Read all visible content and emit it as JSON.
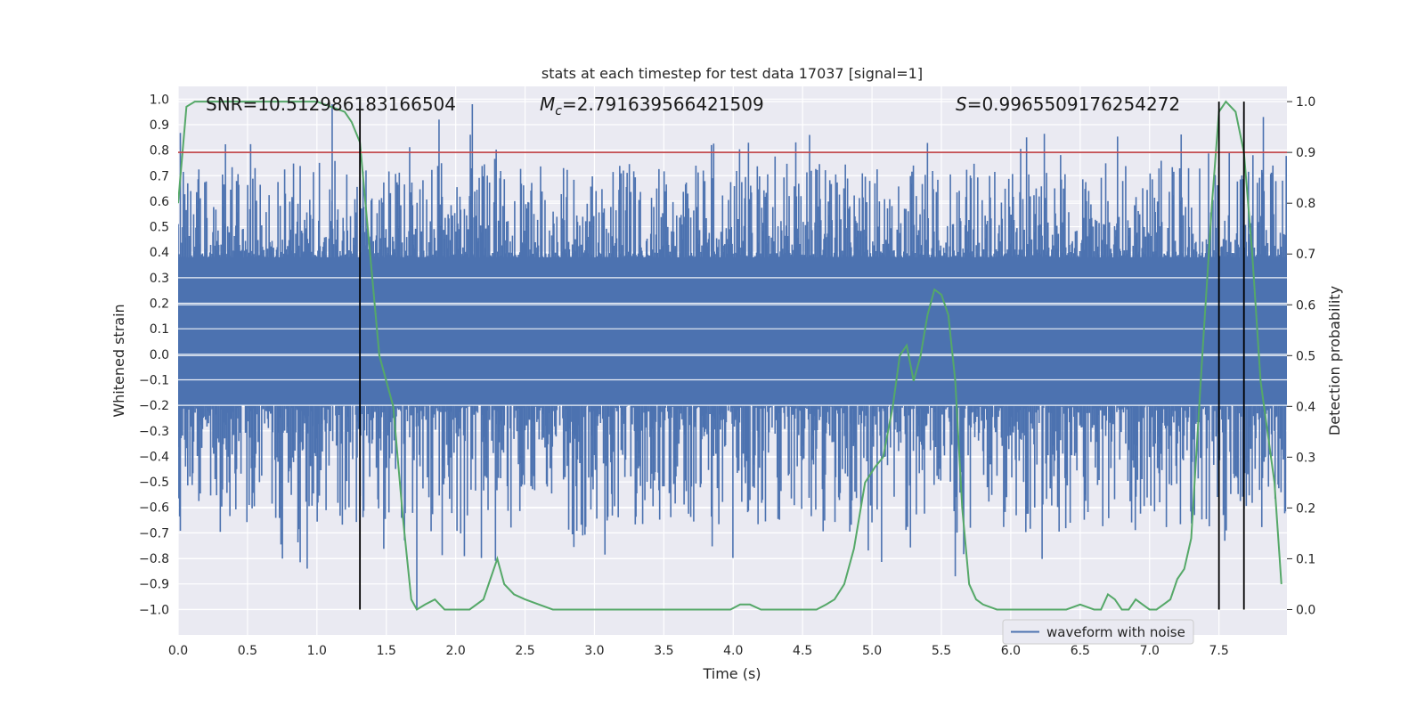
{
  "chart_data": {
    "type": "line",
    "title": "stats at each timestep for test data 17037 [signal=1]",
    "xlabel": "Time (s)",
    "ylabel_left": "Whitened strain",
    "ylabel_right": "Detection probability",
    "xlim": [
      0.0,
      7.99
    ],
    "ylim_left": [
      -1.1,
      1.05
    ],
    "ylim_right": [
      -0.05,
      1.03
    ],
    "x_ticks": [
      0.0,
      0.5,
      1.0,
      1.5,
      2.0,
      2.5,
      3.0,
      3.5,
      4.0,
      4.5,
      5.0,
      5.5,
      6.0,
      6.5,
      7.0,
      7.5
    ],
    "x_tick_labels": [
      "0.0",
      "0.5",
      "1.0",
      "1.5",
      "2.0",
      "2.5",
      "3.0",
      "3.5",
      "4.0",
      "4.5",
      "5.0",
      "5.5",
      "6.0",
      "6.5",
      "7.0",
      "7.5"
    ],
    "y_left_ticks": [
      1.0,
      0.9,
      0.8,
      0.7,
      0.6,
      0.5,
      0.4,
      0.3,
      0.2,
      0.1,
      0.0,
      -0.1,
      -0.2,
      -0.3,
      -0.4,
      -0.5,
      -0.6,
      -0.7,
      -0.8,
      -0.9,
      -1.0
    ],
    "y_left_tick_labels": [
      "1.0",
      "0.9",
      "0.8",
      "0.7",
      "0.6",
      "0.5",
      "0.4",
      "0.3",
      "0.2",
      "0.1",
      "0.0",
      "−0.1",
      "−0.2",
      "−0.3",
      "−0.4",
      "−0.5",
      "−0.6",
      "−0.7",
      "−0.8",
      "−0.9",
      "−1.0"
    ],
    "y_right_ticks": [
      1.0,
      0.9,
      0.8,
      0.7,
      0.6,
      0.5,
      0.4,
      0.3,
      0.2,
      0.1,
      0.0
    ],
    "y_right_tick_labels": [
      "1.0",
      "0.9",
      "0.8",
      "0.7",
      "0.6",
      "0.5",
      "0.4",
      "0.3",
      "0.2",
      "0.1",
      "0.0"
    ],
    "annotations": {
      "snr": "SNR=10.512986183166504",
      "mc_symbol": "M",
      "mc_sub": "c",
      "mc_value": "=2.791639566421509",
      "s_symbol": "S",
      "s_value": "=0.9965509176254272"
    },
    "threshold_right": 0.9,
    "vertical_lines_x": [
      1.31,
      7.5,
      7.68
    ],
    "legend": {
      "label": "waveform with noise",
      "placement": "lower-right"
    },
    "series": [
      {
        "name": "waveform with noise",
        "axis": "left",
        "color": "#4c72b0",
        "render": "dense noise band",
        "band_core": [
          -0.2,
          0.38
        ],
        "typical_peaks": [
          -0.7,
          0.75
        ],
        "extreme_peaks": [
          {
            "x": 1.11,
            "y": 0.98
          },
          {
            "x": 2.12,
            "y": 0.98
          },
          {
            "x": 1.88,
            "y": 0.92
          },
          {
            "x": 4.55,
            "y": 0.86
          },
          {
            "x": 7.68,
            "y": 0.95
          },
          {
            "x": 7.82,
            "y": 0.93
          },
          {
            "x": 1.72,
            "y": -1.0
          },
          {
            "x": 0.93,
            "y": -0.84
          },
          {
            "x": 5.6,
            "y": -0.87
          }
        ]
      },
      {
        "name": "detection probability",
        "axis": "right",
        "color": "#55a868",
        "x": [
          0.0,
          0.06,
          0.12,
          0.2,
          0.3,
          0.4,
          0.5,
          0.6,
          0.7,
          0.8,
          0.9,
          1.0,
          1.1,
          1.2,
          1.25,
          1.31,
          1.35,
          1.4,
          1.45,
          1.5,
          1.55,
          1.62,
          1.68,
          1.72,
          1.78,
          1.85,
          1.92,
          2.0,
          2.1,
          2.2,
          2.25,
          2.3,
          2.35,
          2.42,
          2.5,
          2.6,
          2.7,
          2.8,
          3.0,
          3.2,
          3.4,
          3.6,
          3.8,
          3.98,
          4.05,
          4.12,
          4.2,
          4.3,
          4.4,
          4.5,
          4.6,
          4.67,
          4.73,
          4.8,
          4.87,
          4.95,
          5.02,
          5.08,
          5.15,
          5.2,
          5.25,
          5.3,
          5.35,
          5.4,
          5.45,
          5.5,
          5.55,
          5.6,
          5.65,
          5.7,
          5.75,
          5.8,
          5.9,
          6.0,
          6.1,
          6.2,
          6.3,
          6.4,
          6.5,
          6.6,
          6.65,
          6.7,
          6.75,
          6.8,
          6.85,
          6.9,
          6.95,
          7.0,
          7.05,
          7.1,
          7.15,
          7.2,
          7.25,
          7.3,
          7.38,
          7.45,
          7.5,
          7.55,
          7.62,
          7.68,
          7.74,
          7.8,
          7.9,
          7.95
        ],
        "y": [
          0.8,
          0.99,
          1.0,
          1.0,
          1.0,
          1.0,
          1.0,
          1.0,
          1.0,
          1.0,
          1.0,
          1.0,
          0.99,
          0.98,
          0.96,
          0.92,
          0.8,
          0.65,
          0.5,
          0.45,
          0.4,
          0.18,
          0.02,
          0.0,
          0.01,
          0.02,
          0.0,
          0.0,
          0.0,
          0.02,
          0.06,
          0.1,
          0.05,
          0.03,
          0.02,
          0.01,
          0.0,
          0.0,
          0.0,
          0.0,
          0.0,
          0.0,
          0.0,
          0.0,
          0.01,
          0.01,
          0.0,
          0.0,
          0.0,
          0.0,
          0.0,
          0.01,
          0.02,
          0.05,
          0.12,
          0.25,
          0.28,
          0.3,
          0.4,
          0.5,
          0.52,
          0.45,
          0.5,
          0.58,
          0.63,
          0.62,
          0.58,
          0.45,
          0.2,
          0.05,
          0.02,
          0.01,
          0.0,
          0.0,
          0.0,
          0.0,
          0.0,
          0.0,
          0.01,
          0.0,
          0.0,
          0.03,
          0.02,
          0.0,
          0.0,
          0.02,
          0.01,
          0.0,
          0.0,
          0.01,
          0.02,
          0.06,
          0.08,
          0.14,
          0.5,
          0.8,
          0.98,
          1.0,
          0.98,
          0.9,
          0.7,
          0.45,
          0.25,
          0.05
        ]
      }
    ]
  }
}
